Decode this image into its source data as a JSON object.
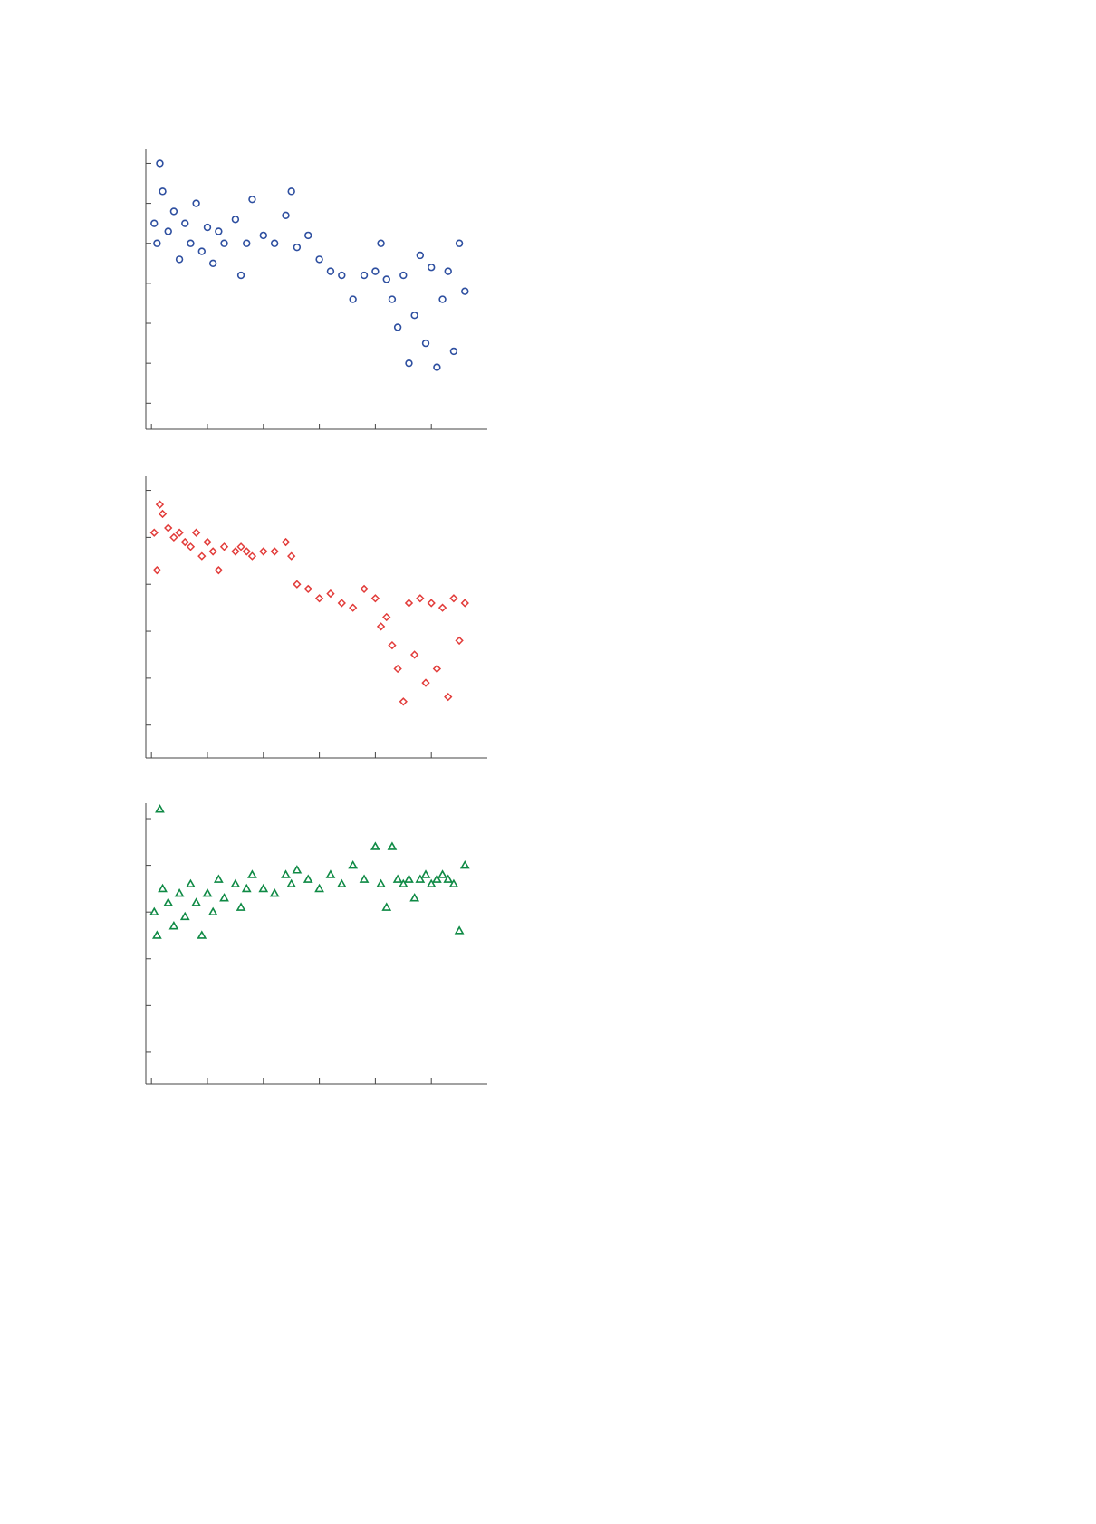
{
  "chart_data": [
    {
      "type": "scatter",
      "marker": "circle",
      "color": "#2e4fa0",
      "x": [
        0.05,
        0.1,
        0.15,
        0.2,
        0.3,
        0.4,
        0.5,
        0.6,
        0.7,
        0.8,
        0.9,
        1.0,
        1.1,
        1.2,
        1.3,
        1.5,
        1.6,
        1.7,
        1.8,
        2.0,
        2.2,
        2.4,
        2.5,
        2.6,
        2.8,
        3.0,
        3.2,
        3.4,
        3.6,
        3.8,
        4.0,
        4.1,
        4.2,
        4.3,
        4.4,
        4.5,
        4.6,
        4.7,
        4.8,
        4.9,
        5.0,
        5.1,
        5.2,
        5.3,
        5.4,
        5.5,
        5.6
      ],
      "values": [
        4.5,
        4.0,
        6.0,
        5.3,
        4.3,
        4.8,
        3.6,
        4.5,
        4.0,
        5.0,
        3.8,
        4.4,
        3.5,
        4.3,
        4.0,
        4.6,
        3.2,
        4.0,
        5.1,
        4.2,
        4.0,
        4.7,
        5.3,
        3.9,
        4.2,
        3.6,
        3.3,
        3.2,
        2.6,
        3.2,
        3.3,
        4.0,
        3.1,
        2.6,
        1.9,
        3.2,
        1.0,
        2.2,
        3.7,
        1.5,
        3.4,
        0.9,
        2.6,
        3.3,
        1.3,
        4.0,
        2.8
      ],
      "xlim": [
        -0.1,
        6
      ],
      "xticks": [
        0,
        1,
        2,
        3,
        4,
        5
      ],
      "ylim": [
        -0.65,
        6.35
      ],
      "yticks": [
        0,
        1,
        2,
        3,
        4,
        5,
        6
      ]
    },
    {
      "type": "scatter",
      "marker": "diamond",
      "color": "#e23c3a",
      "x": [
        0.05,
        0.1,
        0.15,
        0.2,
        0.3,
        0.4,
        0.5,
        0.6,
        0.7,
        0.8,
        0.9,
        1.0,
        1.1,
        1.2,
        1.3,
        1.5,
        1.6,
        1.7,
        1.8,
        2.0,
        2.2,
        2.4,
        2.5,
        2.6,
        2.8,
        3.0,
        3.2,
        3.4,
        3.6,
        3.8,
        4.0,
        4.1,
        4.2,
        4.3,
        4.4,
        4.5,
        4.6,
        4.7,
        4.8,
        4.9,
        5.0,
        5.1,
        5.2,
        5.3,
        5.4,
        5.5,
        5.6
      ],
      "values": [
        4.1,
        3.3,
        4.7,
        4.5,
        4.2,
        4.0,
        4.1,
        3.9,
        3.8,
        4.1,
        3.6,
        3.9,
        3.7,
        3.3,
        3.8,
        3.7,
        3.8,
        3.7,
        3.6,
        3.7,
        3.7,
        3.9,
        3.6,
        3.0,
        2.9,
        2.7,
        2.8,
        2.6,
        2.5,
        2.9,
        2.7,
        2.1,
        2.3,
        1.7,
        1.2,
        0.5,
        2.6,
        1.5,
        2.7,
        0.9,
        2.6,
        1.2,
        2.5,
        0.6,
        2.7,
        1.8,
        2.6
      ],
      "xlim": [
        -0.1,
        6
      ],
      "xticks": [
        0,
        1,
        2,
        3,
        4,
        5
      ],
      "ylim": [
        -0.7,
        5.3
      ],
      "yticks": [
        0,
        1,
        2,
        3,
        4,
        5
      ]
    },
    {
      "type": "scatter",
      "marker": "triangle",
      "color": "#0f8a45",
      "x": [
        0.05,
        0.1,
        0.15,
        0.2,
        0.3,
        0.4,
        0.5,
        0.6,
        0.7,
        0.8,
        0.9,
        1.0,
        1.1,
        1.2,
        1.3,
        1.5,
        1.6,
        1.7,
        1.8,
        2.0,
        2.2,
        2.4,
        2.5,
        2.6,
        2.8,
        3.0,
        3.2,
        3.4,
        3.6,
        3.8,
        4.0,
        4.1,
        4.2,
        4.3,
        4.4,
        4.5,
        4.6,
        4.7,
        4.8,
        4.9,
        5.0,
        5.1,
        5.2,
        5.3,
        5.4,
        5.5,
        5.6
      ],
      "values": [
        3.0,
        2.5,
        5.2,
        3.5,
        3.2,
        2.7,
        3.4,
        2.9,
        3.6,
        3.2,
        2.5,
        3.4,
        3.0,
        3.7,
        3.3,
        3.6,
        3.1,
        3.5,
        3.8,
        3.5,
        3.4,
        3.8,
        3.6,
        3.9,
        3.7,
        3.5,
        3.8,
        3.6,
        4.0,
        3.7,
        4.4,
        3.6,
        3.1,
        4.4,
        3.7,
        3.6,
        3.7,
        3.3,
        3.7,
        3.8,
        3.6,
        3.7,
        3.8,
        3.7,
        3.6,
        2.6,
        4.0
      ],
      "xlim": [
        -0.1,
        6
      ],
      "xticks": [
        0,
        1,
        2,
        3,
        4,
        5
      ],
      "ylim": [
        -0.68,
        5.33
      ],
      "yticks": [
        0,
        1,
        2,
        3,
        4,
        5
      ]
    }
  ]
}
